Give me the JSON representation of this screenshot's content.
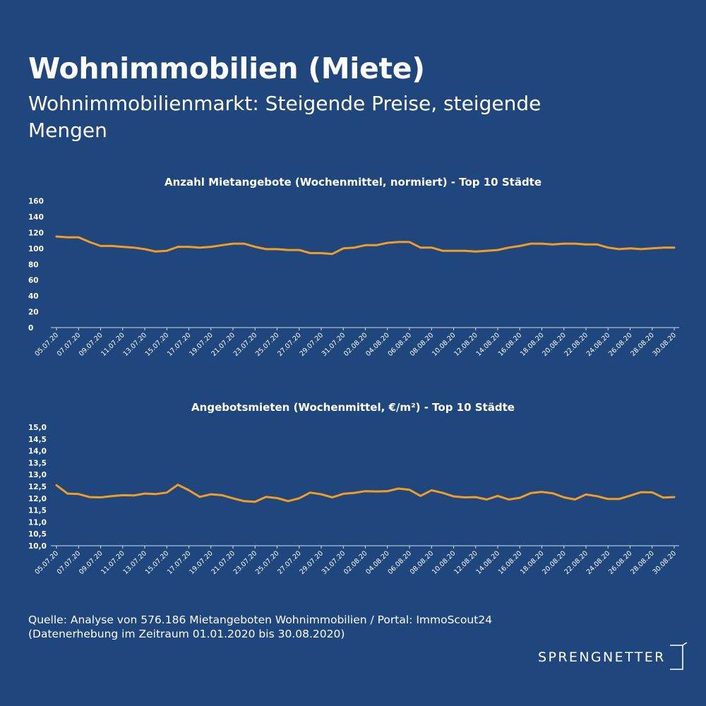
{
  "header": {
    "title": "Wohnimmobilien (Miete)",
    "subtitle": "Wohnimmobilienmarkt: Steigende Preise, steigende Mengen"
  },
  "dates": [
    "05.07.20",
    "06.07.20",
    "07.07.20",
    "08.07.20",
    "09.07.20",
    "10.07.20",
    "11.07.20",
    "12.07.20",
    "13.07.20",
    "14.07.20",
    "15.07.20",
    "16.07.20",
    "17.07.20",
    "18.07.20",
    "19.07.20",
    "20.07.20",
    "21.07.20",
    "22.07.20",
    "23.07.20",
    "24.07.20",
    "25.07.20",
    "26.07.20",
    "27.07.20",
    "28.07.20",
    "29.07.20",
    "30.07.20",
    "31.07.20",
    "01.08.20",
    "02.08.20",
    "03.08.20",
    "04.08.20",
    "05.08.20",
    "06.08.20",
    "07.08.20",
    "08.08.20",
    "09.08.20",
    "10.08.20",
    "11.08.20",
    "12.08.20",
    "13.08.20",
    "14.08.20",
    "15.08.20",
    "16.08.20",
    "17.08.20",
    "18.08.20",
    "19.08.20",
    "20.08.20",
    "21.08.20",
    "22.08.20",
    "23.08.20",
    "24.08.20",
    "25.08.20",
    "26.08.20",
    "27.08.20",
    "28.08.20",
    "29.08.20",
    "30.08.20"
  ],
  "chart_data": [
    {
      "type": "line",
      "title": "Anzahl Mietangebote (Wochenmittel, normiert) - Top 10 Städte",
      "x_tick_labels": [
        "05.07.20",
        "07.07.20",
        "09.07.20",
        "11.07.20",
        "13.07.20",
        "15.07.20",
        "17.07.20",
        "19.07.20",
        "21.07.20",
        "23.07.20",
        "25.07.20",
        "27.07.20",
        "29.07.20",
        "31.07.20",
        "02.08.20",
        "04.08.20",
        "06.08.20",
        "08.08.20",
        "10.08.20",
        "12.08.20",
        "14.08.20",
        "16.08.20",
        "18.08.20",
        "20.08.20",
        "22.08.20",
        "24.08.20",
        "26.08.20",
        "28.08.20",
        "30.08.20"
      ],
      "y_ticks": [
        0,
        20,
        40,
        60,
        80,
        100,
        120,
        140,
        160
      ],
      "y_tick_labels": [
        "0",
        "20",
        "40",
        "60",
        "80",
        "100",
        "120",
        "140",
        "160"
      ],
      "ylim": [
        0,
        160
      ],
      "color": "#f39c23",
      "series": [
        {
          "values": [
            115,
            114,
            114,
            108,
            103,
            103,
            102,
            101,
            99,
            96,
            97,
            102,
            102,
            101,
            102,
            104,
            106,
            106,
            102,
            99,
            99,
            98,
            98,
            94,
            94,
            93,
            100,
            101,
            104,
            104,
            107,
            108,
            108,
            101,
            101,
            97,
            97,
            97,
            96,
            97,
            98,
            101,
            103,
            106,
            106,
            105,
            106,
            106,
            105,
            105,
            101,
            99,
            100,
            99,
            100,
            101,
            101
          ]
        }
      ]
    },
    {
      "type": "line",
      "title": "Angebotsmieten (Wochenmittel, €/m²) - Top 10 Städte",
      "x_tick_labels": [
        "05.07.20",
        "07.07.20",
        "09.07.20",
        "11.07.20",
        "13.07.20",
        "15.07.20",
        "17.07.20",
        "19.07.20",
        "21.07.20",
        "23.07.20",
        "25.07.20",
        "27.07.20",
        "29.07.20",
        "31.07.20",
        "02.08.20",
        "04.08.20",
        "06.08.20",
        "08.08.20",
        "10.08.20",
        "12.08.20",
        "14.08.20",
        "16.08.20",
        "18.08.20",
        "20.08.20",
        "22.08.20",
        "24.08.20",
        "26.08.20",
        "28.08.20",
        "30.08.20"
      ],
      "y_ticks": [
        10.0,
        10.5,
        11.0,
        11.5,
        12.0,
        12.5,
        13.0,
        13.5,
        14.0,
        14.5,
        15.0
      ],
      "y_tick_labels": [
        "10,0",
        "10,5",
        "11,0",
        "11,5",
        "12,0",
        "12,5",
        "13,0",
        "13,5",
        "14,0",
        "14,5",
        "15,0"
      ],
      "ylim": [
        10.0,
        15.0
      ],
      "color": "#f39c23",
      "series": [
        {
          "values": [
            12.55,
            12.2,
            12.18,
            12.05,
            12.04,
            12.09,
            12.13,
            12.12,
            12.2,
            12.18,
            12.24,
            12.57,
            12.34,
            12.06,
            12.17,
            12.13,
            12.0,
            11.88,
            11.85,
            12.06,
            12.01,
            11.88,
            12.0,
            12.24,
            12.17,
            12.04,
            12.19,
            12.23,
            12.3,
            12.29,
            12.3,
            12.41,
            12.36,
            12.1,
            12.34,
            12.23,
            12.08,
            12.04,
            12.05,
            11.95,
            12.1,
            11.95,
            12.02,
            12.22,
            12.27,
            12.21,
            12.04,
            11.95,
            12.16,
            12.09,
            11.97,
            11.97,
            12.11,
            12.26,
            12.25,
            12.03,
            12.05
          ]
        }
      ]
    }
  ],
  "source": {
    "line1": "Quelle: Analyse von 576.186 Mietangeboten Wohnimmobilien / Portal: ImmoScout24",
    "line2": "(Datenerhebung im Zeitraum 01.01.2020 bis  30.08.2020)"
  },
  "logo": {
    "text": "SPRENGNETTER"
  }
}
